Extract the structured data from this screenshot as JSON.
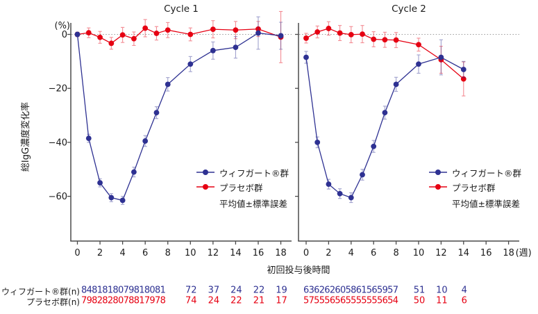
{
  "figure": {
    "y_unit": "(%)",
    "y_label": "総IgG濃度変化率",
    "x_label": "初回投与後時間",
    "x_unit": "(週)",
    "legend_note": "平均値±標準誤差",
    "colors": {
      "efgartigimod": "#2e3192",
      "placebo": "#e60012",
      "axis": "#4a4a4a",
      "zero_line": "#9a9a9a"
    },
    "table": {
      "row1_label": "ウィフガート®群(n)",
      "row2_label": "プラセボ群(n)"
    }
  },
  "chart_data": [
    {
      "type": "line",
      "title": "Cycle 1",
      "xlabel": "初回投与後時間 (週)",
      "ylabel": "総IgG濃度変化率 (%)",
      "xlim": [
        0,
        19.5
      ],
      "ylim": [
        -77,
        4
      ],
      "grid": false,
      "zero_reference_line": true,
      "x_ticks": [
        0,
        2,
        4,
        6,
        8,
        10,
        12,
        14,
        16,
        18
      ],
      "y_ticks": [
        0,
        -20,
        -40,
        -60
      ],
      "x": [
        0,
        1,
        2,
        3,
        4,
        5,
        6,
        7,
        8,
        10,
        12,
        14,
        16,
        18
      ],
      "series": [
        {
          "name": "ウィフガート®群",
          "color": "#2e3192",
          "values": [
            0,
            -38.5,
            -55,
            -60.5,
            -61.5,
            -51,
            -39.5,
            -29,
            -18.5,
            -11,
            -6,
            -4.8,
            0.5,
            -0.5
          ],
          "stderr": [
            0.8,
            1.5,
            1.5,
            1.5,
            1.5,
            1.8,
            2,
            2.2,
            2.5,
            2.8,
            3.2,
            4,
            6,
            5
          ],
          "n": [
            84,
            81,
            81,
            80,
            79,
            81,
            80,
            81,
            72,
            37,
            24,
            22,
            19
          ],
          "n_tight_count": 8,
          "n_sparse_weeks": [
            10,
            12,
            14,
            16,
            18
          ]
        },
        {
          "name": "プラセボ群",
          "color": "#e60012",
          "values": [
            0,
            0.6,
            -1.1,
            -3.3,
            -0.2,
            -1.6,
            2.3,
            0.4,
            1.6,
            0,
            1.9,
            1.6,
            2.0,
            -1.0
          ],
          "stderr": [
            0.8,
            1.8,
            2.2,
            2.2,
            2.8,
            2.5,
            3.2,
            2.5,
            2.8,
            2.4,
            3.2,
            3.2,
            2.8,
            9.5
          ],
          "n": [
            79,
            82,
            82,
            80,
            78,
            81,
            79,
            78,
            74,
            24,
            22,
            21,
            17
          ],
          "n_tight_count": 8,
          "n_sparse_weeks": [
            10,
            12,
            14,
            16,
            18
          ]
        }
      ]
    },
    {
      "type": "line",
      "title": "Cycle 2",
      "xlabel": "初回投与後時間 (週)",
      "ylabel": "総IgG濃度変化率 (%)",
      "xlim": [
        0,
        19.5
      ],
      "ylim": [
        -77,
        4
      ],
      "grid": false,
      "zero_reference_line": true,
      "x_ticks": [
        0,
        2,
        4,
        6,
        8,
        10,
        12,
        14,
        16,
        18
      ],
      "y_ticks": [
        0,
        -20,
        -40,
        -60
      ],
      "x": [
        0,
        1,
        2,
        3,
        4,
        5,
        6,
        7,
        8,
        10,
        12,
        14
      ],
      "series": [
        {
          "name": "ウィフガート®群",
          "color": "#2e3192",
          "values": [
            -8.5,
            -40,
            -55.5,
            -59,
            -60.5,
            -52,
            -41.5,
            -29,
            -18.5,
            -11,
            -8.5,
            -13
          ],
          "stderr": [
            2.2,
            2,
            1.8,
            1.8,
            1.8,
            2,
            2.2,
            2.4,
            2.6,
            3.4,
            6.5,
            3
          ],
          "n": [
            63,
            62,
            62,
            60,
            58,
            61,
            56,
            59,
            57,
            51,
            10,
            4
          ],
          "n_tight_count": 9,
          "n_sparse_weeks": [
            10,
            12,
            14
          ]
        },
        {
          "name": "プラセボ群",
          "color": "#e60012",
          "values": [
            -1.4,
            0.9,
            2.2,
            0.5,
            -0.1,
            0.1,
            -1.8,
            -2.0,
            -2.1,
            -3.8,
            -9.4,
            -16.5
          ],
          "stderr": [
            1.8,
            2.2,
            2.5,
            2.8,
            3.0,
            3.2,
            2.8,
            2.8,
            2.8,
            2.4,
            5,
            6.3
          ],
          "n": [
            57,
            55,
            56,
            56,
            55,
            55,
            55,
            56,
            54,
            50,
            11,
            6
          ],
          "n_tight_count": 9,
          "n_sparse_weeks": [
            10,
            12,
            14
          ]
        }
      ]
    }
  ]
}
